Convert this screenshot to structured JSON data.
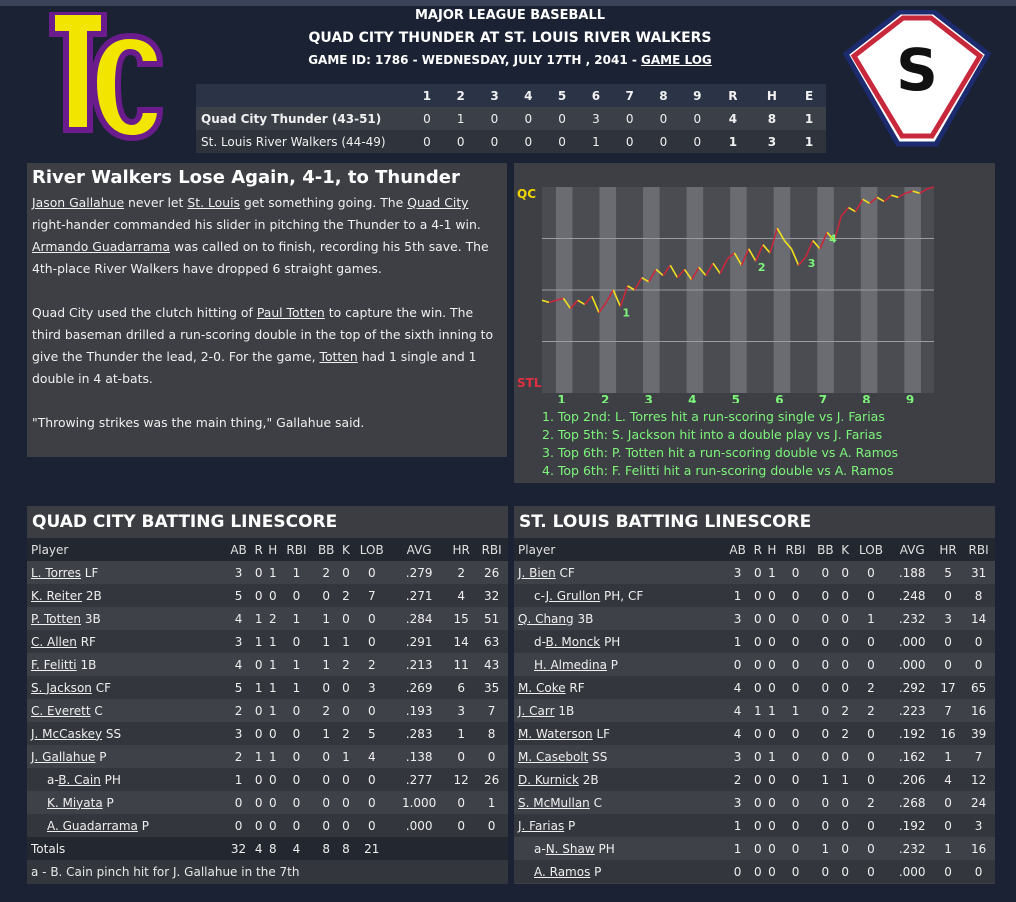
{
  "colors": {
    "qc_line": "#f0e020",
    "stl_line": "#c8283c",
    "event_text": "#7df57a",
    "qc_label": "#f0d400",
    "stl_label": "#e03040"
  },
  "header": {
    "league": "MAJOR LEAGUE BASEBALL",
    "matchup": "QUAD CITY THUNDER AT ST. LOUIS RIVER WALKERS",
    "game_info": "GAME ID: 1786 - WEDNESDAY, JULY 17TH , 2041 - ",
    "game_log_link": "GAME LOG"
  },
  "logos": {
    "left_text": "TC",
    "right_text": "S"
  },
  "linescore": {
    "headers": [
      "",
      "1",
      "2",
      "3",
      "4",
      "5",
      "6",
      "7",
      "8",
      "9",
      "R",
      "H",
      "E"
    ],
    "rows": [
      {
        "team": "Quad City Thunder (43-51)",
        "innings": [
          "0",
          "1",
          "0",
          "0",
          "0",
          "3",
          "0",
          "0",
          "0"
        ],
        "r": "4",
        "h": "8",
        "e": "1"
      },
      {
        "team": "St. Louis River Walkers (44-49)",
        "innings": [
          "0",
          "0",
          "0",
          "0",
          "0",
          "1",
          "0",
          "0",
          "0"
        ],
        "r": "1",
        "h": "3",
        "e": "1"
      }
    ]
  },
  "recap": {
    "title": "River Walkers Lose Again, 4-1, to Thunder",
    "p1": [
      {
        "t": "Jason Gallahue",
        "link": true
      },
      {
        "t": " never let "
      },
      {
        "t": "St. Louis",
        "link": true
      },
      {
        "t": " get something going. The "
      },
      {
        "t": "Quad City",
        "link": true
      },
      {
        "t": " right-hander commanded his slider in pitching the Thunder to a 4-1 win. "
      },
      {
        "t": "Armando Guadarrama",
        "link": true
      },
      {
        "t": " was called on to finish, recording his 5th save. The 4th-place River Walkers have dropped 6 straight games."
      }
    ],
    "p2": [
      {
        "t": "Quad City used the clutch hitting of "
      },
      {
        "t": "Paul Totten",
        "link": true
      },
      {
        "t": " to capture the win. The third baseman drilled a run-scoring double in the top of the sixth inning to give the Thunder the lead, 2-0. For the game, "
      },
      {
        "t": "Totten",
        "link": true
      },
      {
        "t": " had 1 single and 1 double in 4 at-bats."
      }
    ],
    "p3": [
      {
        "t": "\"Throwing strikes was the main thing,\" Gallahue said."
      }
    ]
  },
  "chart": {
    "top_label": "QC",
    "bottom_label": "STL",
    "innings": [
      "1",
      "2",
      "3",
      "4",
      "5",
      "6",
      "7",
      "8",
      "9"
    ],
    "markers": [
      "1",
      "2",
      "3",
      "4"
    ],
    "events": [
      "1. Top 2nd: L. Torres hit a run-scoring single vs J. Farias",
      "2. Top 5th: S. Jackson hit into a double play vs J. Farias",
      "3. Top 6th: P. Totten hit a run-scoring double vs A. Ramos",
      "4. Top 6th: F. Felitti hit a run-scoring double vs A. Ramos"
    ],
    "win_probability_qc": [
      0.45,
      0.44,
      0.45,
      0.46,
      0.41,
      0.45,
      0.43,
      0.47,
      0.39,
      0.44,
      0.5,
      0.42,
      0.52,
      0.5,
      0.56,
      0.54,
      0.6,
      0.57,
      0.62,
      0.56,
      0.6,
      0.55,
      0.61,
      0.57,
      0.63,
      0.58,
      0.65,
      0.68,
      0.62,
      0.7,
      0.64,
      0.72,
      0.68,
      0.8,
      0.74,
      0.7,
      0.62,
      0.66,
      0.74,
      0.7,
      0.78,
      0.74,
      0.86,
      0.9,
      0.88,
      0.94,
      0.92,
      0.95,
      0.93,
      0.96,
      0.95,
      0.97,
      0.98,
      0.97,
      0.99,
      1.0
    ]
  },
  "qc_batting": {
    "title": "QUAD CITY BATTING LINESCORE",
    "headers": [
      "Player",
      "AB",
      "R",
      "H",
      "RBI",
      "BB",
      "K",
      "LOB",
      "AVG",
      "HR",
      "RBI"
    ],
    "rows": [
      {
        "prefix": "",
        "name": "L. Torres",
        "pos": " LF",
        "stats": [
          "3",
          "0",
          "1",
          "1",
          "2",
          "0",
          "0",
          ".279",
          "2",
          "26"
        ]
      },
      {
        "prefix": "",
        "name": "K. Reiter",
        "pos": " 2B",
        "stats": [
          "5",
          "0",
          "0",
          "0",
          "0",
          "2",
          "7",
          ".271",
          "4",
          "32"
        ]
      },
      {
        "prefix": "",
        "name": "P. Totten",
        "pos": " 3B",
        "stats": [
          "4",
          "1",
          "2",
          "1",
          "1",
          "0",
          "0",
          ".284",
          "15",
          "51"
        ]
      },
      {
        "prefix": "",
        "name": "C. Allen",
        "pos": " RF",
        "stats": [
          "3",
          "1",
          "1",
          "0",
          "1",
          "1",
          "0",
          ".291",
          "14",
          "63"
        ]
      },
      {
        "prefix": "",
        "name": "F. Felitti",
        "pos": " 1B",
        "stats": [
          "4",
          "0",
          "1",
          "1",
          "1",
          "2",
          "2",
          ".213",
          "11",
          "43"
        ]
      },
      {
        "prefix": "",
        "name": "S. Jackson",
        "pos": " CF",
        "stats": [
          "5",
          "1",
          "1",
          "1",
          "0",
          "0",
          "3",
          ".269",
          "6",
          "35"
        ]
      },
      {
        "prefix": "",
        "name": "C. Everett",
        "pos": " C",
        "stats": [
          "2",
          "0",
          "1",
          "0",
          "2",
          "0",
          "0",
          ".193",
          "3",
          "7"
        ]
      },
      {
        "prefix": "",
        "name": "J. McCaskey",
        "pos": " SS",
        "stats": [
          "3",
          "0",
          "0",
          "0",
          "1",
          "2",
          "5",
          ".283",
          "1",
          "8"
        ]
      },
      {
        "prefix": "",
        "name": "J. Gallahue",
        "pos": " P",
        "stats": [
          "2",
          "1",
          "1",
          "0",
          "0",
          "1",
          "4",
          ".138",
          "0",
          "0"
        ]
      },
      {
        "prefix": "a-",
        "name": "B. Cain",
        "pos": " PH",
        "stats": [
          "1",
          "0",
          "0",
          "0",
          "0",
          "0",
          "0",
          ".277",
          "12",
          "26"
        ]
      },
      {
        "prefix": "",
        "name": "K. Miyata",
        "pos": " P",
        "stats": [
          "0",
          "0",
          "0",
          "0",
          "0",
          "0",
          "0",
          "1.000",
          "0",
          "1"
        ],
        "indent": true
      },
      {
        "prefix": "",
        "name": "A. Guadarrama",
        "pos": " P",
        "stats": [
          "0",
          "0",
          "0",
          "0",
          "0",
          "0",
          "0",
          ".000",
          "0",
          "0"
        ],
        "indent": true
      }
    ],
    "totals": {
      "label": "Totals",
      "stats": [
        "32",
        "4",
        "8",
        "4",
        "8",
        "8",
        "21",
        "",
        "",
        ""
      ]
    },
    "note": "a - B. Cain pinch hit for J. Gallahue in the 7th"
  },
  "stl_batting": {
    "title": "ST. LOUIS BATTING LINESCORE",
    "headers": [
      "Player",
      "AB",
      "R",
      "H",
      "RBI",
      "BB",
      "K",
      "LOB",
      "AVG",
      "HR",
      "RBI"
    ],
    "rows": [
      {
        "prefix": "",
        "name": "J. Bien",
        "pos": " CF",
        "stats": [
          "3",
          "0",
          "1",
          "0",
          "0",
          "0",
          "0",
          ".188",
          "5",
          "31"
        ]
      },
      {
        "prefix": "c-",
        "name": "J. Grullon",
        "pos": " PH, CF",
        "stats": [
          "1",
          "0",
          "0",
          "0",
          "0",
          "0",
          "0",
          ".248",
          "0",
          "8"
        ]
      },
      {
        "prefix": "",
        "name": "Q. Chang",
        "pos": " 3B",
        "stats": [
          "3",
          "0",
          "0",
          "0",
          "0",
          "0",
          "1",
          ".232",
          "3",
          "14"
        ]
      },
      {
        "prefix": "d-",
        "name": "B. Monck",
        "pos": " PH",
        "stats": [
          "1",
          "0",
          "0",
          "0",
          "0",
          "0",
          "0",
          ".000",
          "0",
          "0"
        ]
      },
      {
        "prefix": "",
        "name": "H. Almedina",
        "pos": " P",
        "stats": [
          "0",
          "0",
          "0",
          "0",
          "0",
          "0",
          "0",
          ".000",
          "0",
          "0"
        ],
        "indent": true
      },
      {
        "prefix": "",
        "name": "M. Coke",
        "pos": " RF",
        "stats": [
          "4",
          "0",
          "0",
          "0",
          "0",
          "0",
          "2",
          ".292",
          "17",
          "65"
        ]
      },
      {
        "prefix": "",
        "name": "J. Carr",
        "pos": " 1B",
        "stats": [
          "4",
          "1",
          "1",
          "1",
          "0",
          "2",
          "2",
          ".223",
          "7",
          "16"
        ]
      },
      {
        "prefix": "",
        "name": "M. Waterson",
        "pos": " LF",
        "stats": [
          "4",
          "0",
          "0",
          "0",
          "0",
          "2",
          "0",
          ".192",
          "16",
          "39"
        ]
      },
      {
        "prefix": "",
        "name": "M. Casebolt",
        "pos": " SS",
        "stats": [
          "3",
          "0",
          "1",
          "0",
          "0",
          "0",
          "0",
          ".162",
          "1",
          "7"
        ]
      },
      {
        "prefix": "",
        "name": "D. Kurnick",
        "pos": " 2B",
        "stats": [
          "2",
          "0",
          "0",
          "0",
          "1",
          "1",
          "0",
          ".206",
          "4",
          "12"
        ]
      },
      {
        "prefix": "",
        "name": "S. McMullan",
        "pos": " C",
        "stats": [
          "3",
          "0",
          "0",
          "0",
          "0",
          "0",
          "2",
          ".268",
          "0",
          "24"
        ]
      },
      {
        "prefix": "",
        "name": "J. Farias",
        "pos": " P",
        "stats": [
          "1",
          "0",
          "0",
          "0",
          "0",
          "0",
          "0",
          ".192",
          "0",
          "3"
        ]
      },
      {
        "prefix": "a-",
        "name": "N. Shaw",
        "pos": " PH",
        "stats": [
          "1",
          "0",
          "0",
          "0",
          "1",
          "0",
          "0",
          ".232",
          "1",
          "16"
        ]
      },
      {
        "prefix": "",
        "name": "A. Ramos",
        "pos": " P",
        "stats": [
          "0",
          "0",
          "0",
          "0",
          "0",
          "0",
          "0",
          ".000",
          "0",
          "0"
        ],
        "indent": true
      }
    ]
  }
}
